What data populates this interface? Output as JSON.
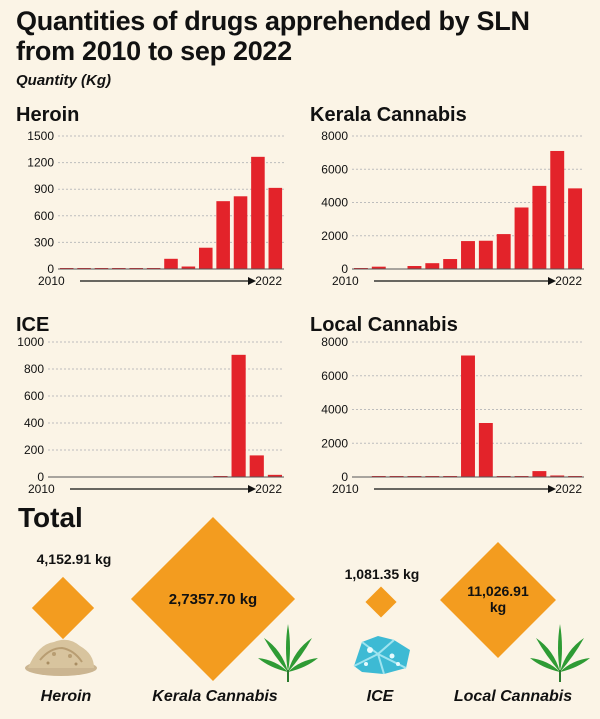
{
  "title": "Quantities of drugs apprehended by SLN from 2010 to sep 2022",
  "subtitle": "Quantity (Kg)",
  "colors": {
    "bar": "#e3232a",
    "diamond": "#f39c1f",
    "background": "#fbf4e6"
  },
  "chart_data": [
    {
      "type": "bar",
      "title": "Heroin",
      "x_start_label": "2010",
      "x_end_label": "2022",
      "categories": [
        "2010",
        "2011",
        "2012",
        "2013",
        "2014",
        "2015",
        "2016",
        "2017",
        "2018",
        "2019",
        "2020",
        "2021",
        "2022"
      ],
      "values": [
        5,
        8,
        6,
        6,
        5,
        7,
        115,
        28,
        240,
        765,
        820,
        1265,
        915
      ],
      "ylim": [
        0,
        1500
      ],
      "yticks": [
        "0",
        "300",
        "600",
        "900",
        "1200",
        "1500"
      ]
    },
    {
      "type": "bar",
      "title": "Kerala Cannabis",
      "x_start_label": "2010",
      "x_end_label": "2022",
      "categories": [
        "2010",
        "2011",
        "2012",
        "2013",
        "2014",
        "2015",
        "2016",
        "2017",
        "2018",
        "2019",
        "2020",
        "2021",
        "2022"
      ],
      "values": [
        10,
        140,
        0,
        180,
        350,
        600,
        1680,
        1700,
        2100,
        3700,
        5000,
        7100,
        4850
      ],
      "ylim": [
        0,
        8000
      ],
      "yticks": [
        "0",
        "2000",
        "4000",
        "6000",
        "8000"
      ]
    },
    {
      "type": "bar",
      "title": "ICE",
      "x_start_label": "2010",
      "x_end_label": "2022",
      "categories": [
        "2010",
        "2011",
        "2012",
        "2013",
        "2014",
        "2015",
        "2016",
        "2017",
        "2018",
        "2019",
        "2020",
        "2021",
        "2022"
      ],
      "values": [
        0,
        0,
        0,
        0,
        0,
        0,
        0,
        0,
        0,
        3,
        905,
        160,
        16
      ],
      "ylim": [
        0,
        1000
      ],
      "yticks": [
        "0",
        "200",
        "400",
        "600",
        "800",
        "1000"
      ]
    },
    {
      "type": "bar",
      "title": "Local Cannabis",
      "x_start_label": "2010",
      "x_end_label": "2022",
      "categories": [
        "2010",
        "2011",
        "2012",
        "2013",
        "2014",
        "2015",
        "2016",
        "2017",
        "2018",
        "2019",
        "2020",
        "2021",
        "2022"
      ],
      "values": [
        0,
        10,
        15,
        20,
        30,
        25,
        7200,
        3200,
        15,
        20,
        350,
        90,
        40
      ],
      "ylim": [
        0,
        8000
      ],
      "yticks": [
        "0",
        "2000",
        "4000",
        "6000",
        "8000"
      ]
    }
  ],
  "totals": {
    "heading": "Total",
    "items": [
      {
        "name": "Heroin",
        "value": "4,152.91 kg",
        "icon": "heroin-powder-icon"
      },
      {
        "name": "Kerala Cannabis",
        "value": "2,7357.70 kg",
        "icon": "cannabis-leaf-icon"
      },
      {
        "name": "ICE",
        "value": "1,081.35 kg",
        "icon": "ice-crystal-icon"
      },
      {
        "name": "Local Cannabis",
        "value_line1": "11,026.91",
        "value_line2": "kg",
        "icon": "cannabis-leaf-icon"
      }
    ]
  }
}
